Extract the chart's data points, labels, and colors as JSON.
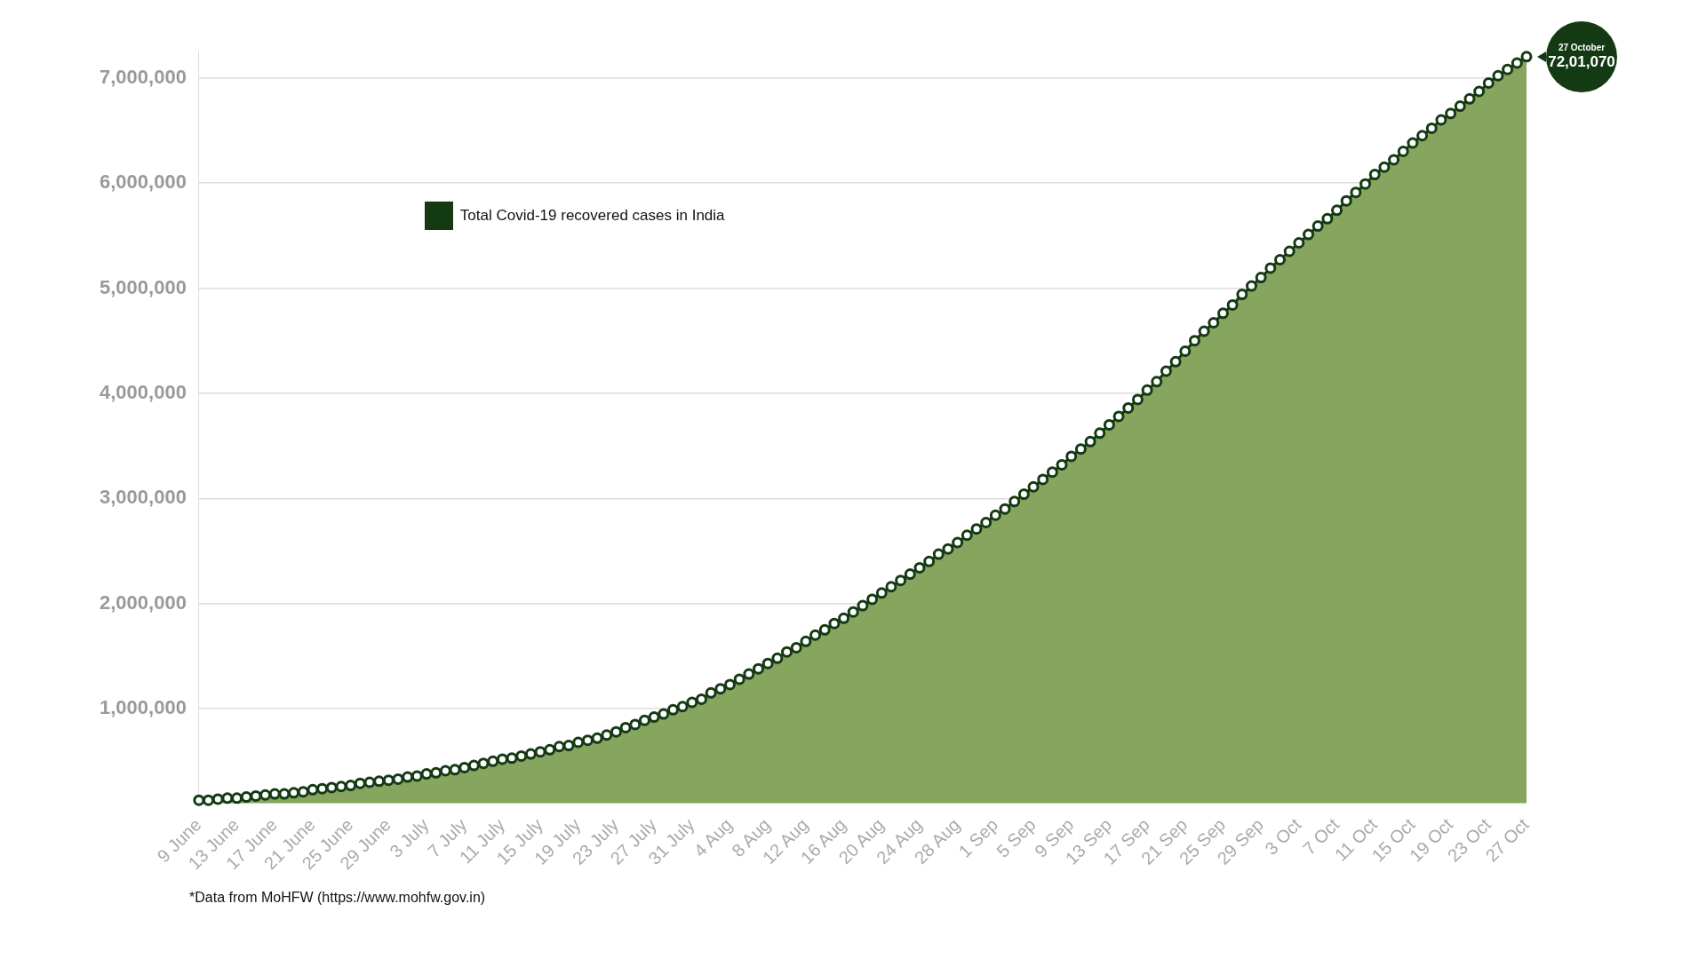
{
  "chart_data": {
    "type": "area",
    "categories": [
      "9 June",
      null,
      null,
      null,
      "13 June",
      null,
      null,
      null,
      "17 June",
      null,
      null,
      null,
      "21 June",
      null,
      null,
      null,
      "25 June",
      null,
      null,
      null,
      "29 June",
      null,
      null,
      null,
      "3 July",
      null,
      null,
      null,
      "7 July",
      null,
      null,
      null,
      "11 July",
      null,
      null,
      null,
      "15 July",
      null,
      null,
      null,
      "19 July",
      null,
      null,
      null,
      "23 July",
      null,
      null,
      null,
      "27 July",
      null,
      null,
      null,
      "31 July",
      null,
      null,
      null,
      "4 Aug",
      null,
      null,
      null,
      "8 Aug",
      null,
      null,
      null,
      "12 Aug",
      null,
      null,
      null,
      "16 Aug",
      null,
      null,
      null,
      "20 Aug",
      null,
      null,
      null,
      "24 Aug",
      null,
      null,
      null,
      "28 Aug",
      null,
      null,
      null,
      "1 Sep",
      null,
      null,
      null,
      "5 Sep",
      null,
      null,
      null,
      "9 Sep",
      null,
      null,
      null,
      "13 Sep",
      null,
      null,
      null,
      "17 Sep",
      null,
      null,
      null,
      "21 Sep",
      null,
      null,
      null,
      "25 Sep",
      null,
      null,
      null,
      "29 Sep",
      null,
      null,
      null,
      "3 Oct",
      null,
      null,
      null,
      "7 Oct",
      null,
      null,
      null,
      "11 Oct",
      null,
      null,
      null,
      "15 Oct",
      null,
      null,
      null,
      "19 Oct",
      null,
      null,
      null,
      "23 Oct",
      null,
      null,
      null,
      "27 Oct"
    ],
    "series": [
      {
        "name": "Total Covid-19 recovered cases in India",
        "color": "#143a13",
        "values": [
          130000,
          130000,
          140000,
          150000,
          150000,
          160000,
          170000,
          180000,
          190000,
          190000,
          200000,
          210000,
          230000,
          240000,
          250000,
          260000,
          270000,
          290000,
          300000,
          310000,
          320000,
          330000,
          350000,
          360000,
          380000,
          390000,
          410000,
          420000,
          440000,
          460000,
          480000,
          500000,
          520000,
          530000,
          550000,
          570000,
          590000,
          610000,
          640000,
          650000,
          680000,
          700000,
          720000,
          750000,
          780000,
          820000,
          850000,
          890000,
          920000,
          950000,
          990000,
          1020000,
          1060000,
          1090000,
          1150000,
          1190000,
          1230000,
          1280000,
          1330000,
          1380000,
          1430000,
          1480000,
          1540000,
          1580000,
          1640000,
          1700000,
          1750000,
          1810000,
          1860000,
          1920000,
          1980000,
          2040000,
          2100000,
          2160000,
          2220000,
          2280000,
          2340000,
          2400000,
          2470000,
          2520000,
          2580000,
          2650000,
          2710000,
          2770000,
          2840000,
          2900000,
          2970000,
          3040000,
          3110000,
          3180000,
          3250000,
          3320000,
          3400000,
          3470000,
          3540000,
          3620000,
          3700000,
          3780000,
          3860000,
          3940000,
          4030000,
          4110000,
          4210000,
          4300000,
          4400000,
          4500000,
          4590000,
          4670000,
          4760000,
          4840000,
          4940000,
          5020000,
          5100000,
          5190000,
          5270000,
          5350000,
          5430000,
          5510000,
          5590000,
          5660000,
          5740000,
          5830000,
          5910000,
          5990000,
          6080000,
          6150000,
          6220000,
          6300000,
          6380000,
          6450000,
          6520000,
          6600000,
          6660000,
          6730000,
          6800000,
          6870000,
          6950000,
          7020000,
          7080000,
          7140000,
          7201070
        ]
      }
    ],
    "ylim": [
      100000,
      7250000
    ],
    "yticks": [
      {
        "value": 1000000,
        "label": "1,000,000"
      },
      {
        "value": 2000000,
        "label": "2,000,000"
      },
      {
        "value": 3000000,
        "label": "3,000,000"
      },
      {
        "value": 4000000,
        "label": "4,000,000"
      },
      {
        "value": 5000000,
        "label": "5,000,000"
      },
      {
        "value": 6000000,
        "label": "6,000,000"
      },
      {
        "value": 7000000,
        "label": "7,000,000"
      }
    ],
    "grid": "y",
    "legend": "top left",
    "marker": "circle",
    "line_style": "solid",
    "annotations": [
      "27 October",
      "72,01,070",
      "*Data from MoHFW (https://www.mohfw.gov.in)"
    ]
  }
}
